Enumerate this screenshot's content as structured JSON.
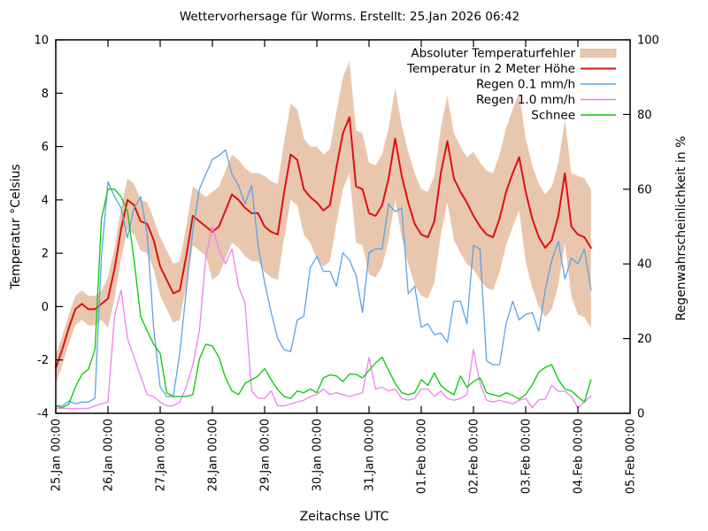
{
  "title": "Wettervorhersage für Worms. Erstellt: 25.Jan 2026 06:42",
  "colors": {
    "background": "#ffffff",
    "axis": "#000000",
    "band": "#e9c6ae",
    "temperature": "#dd1111",
    "rain01": "#5aa3e6",
    "rain10": "#ee82ee",
    "snow": "#00cc00"
  },
  "chart_data": {
    "type": "line",
    "title": "Wettervorhersage für Worms. Erstellt: 25.Jan 2026 06:42",
    "xlabel": "Zeitachse UTC",
    "ylabel_left": "Temperatur °Celsius",
    "ylabel_right": "Regenwahrscheinlichkeit in %",
    "grid": false,
    "legend_position": "top-right-inside",
    "x_axis": {
      "unit": "hours since 25.Jan 00:00 UTC",
      "range": [
        0,
        264
      ],
      "tick_step_hours": 24,
      "tick_labels": [
        "25.Jan 00:00",
        "26.Jan 00:00",
        "27.Jan 00:00",
        "28.Jan 00:00",
        "29.Jan 00:00",
        "30.Jan 00:00",
        "31.Jan 00:00",
        "01.Feb 00:00",
        "02.Feb 00:00",
        "03.Feb 00:00",
        "04.Feb 00:00",
        "05.Feb 00:00"
      ]
    },
    "y_left": {
      "range": [
        -4,
        10
      ],
      "tick_step": 2,
      "tick_labels": [
        "-4",
        "-2",
        "0",
        "2",
        "4",
        "6",
        "8",
        "10"
      ]
    },
    "y_right": {
      "range": [
        0,
        100
      ],
      "tick_step": 20,
      "tick_labels": [
        "0",
        "20",
        "40",
        "60",
        "80",
        "100"
      ]
    },
    "sample_step_hours": 3,
    "series": [
      {
        "name": "Absoluter Temperaturfehler",
        "kind": "band",
        "axis": "left",
        "color": "#e9c6ae",
        "upper": [
          -1.8,
          -1.1,
          -0.3,
          0.4,
          0.6,
          0.4,
          0.4,
          0.6,
          1.1,
          2.2,
          3.7,
          4.8,
          4.6,
          4.0,
          3.9,
          3.3,
          2.6,
          2.1,
          1.6,
          1.7,
          3.0,
          4.5,
          4.3,
          4.1,
          4.3,
          4.5,
          5.1,
          5.7,
          5.5,
          5.2,
          5.0,
          5.0,
          4.9,
          4.7,
          4.6,
          6.2,
          7.6,
          7.4,
          6.3,
          6.0,
          6.0,
          5.7,
          5.9,
          7.3,
          8.6,
          9.2,
          6.6,
          6.5,
          5.4,
          5.3,
          5.7,
          6.7,
          8.2,
          6.8,
          5.8,
          5.0,
          4.4,
          4.3,
          4.9,
          6.7,
          7.9,
          6.5,
          6.0,
          5.6,
          5.8,
          5.4,
          5.1,
          5.0,
          5.7,
          6.7,
          7.4,
          8.0,
          6.3,
          5.3,
          4.6,
          4.2,
          4.5,
          5.4,
          7.0,
          5.0,
          4.9,
          4.8,
          4.4
        ],
        "lower": [
          -2.9,
          -2.2,
          -1.4,
          -0.7,
          -0.5,
          -0.7,
          -0.7,
          -0.5,
          -0.8,
          0.3,
          1.8,
          2.9,
          2.7,
          2.1,
          2.0,
          1.4,
          0.4,
          -0.1,
          -0.6,
          -0.5,
          0.8,
          2.3,
          2.1,
          1.9,
          1.0,
          1.2,
          1.8,
          2.4,
          2.2,
          1.9,
          1.7,
          1.7,
          1.3,
          1.1,
          1.0,
          2.6,
          4.0,
          3.8,
          2.7,
          2.4,
          1.8,
          1.5,
          1.7,
          3.1,
          4.4,
          5.0,
          2.4,
          2.3,
          1.2,
          1.1,
          1.5,
          2.5,
          4.0,
          2.6,
          1.6,
          0.8,
          0.4,
          0.3,
          0.9,
          2.7,
          3.9,
          2.5,
          2.0,
          1.6,
          1.4,
          1.0,
          0.7,
          0.6,
          1.3,
          2.3,
          3.0,
          3.6,
          1.7,
          0.7,
          0.0,
          -0.4,
          -0.1,
          0.8,
          2.4,
          0.4,
          -0.3,
          -0.4,
          -0.8
        ]
      },
      {
        "name": "Temperatur in 2 Meter Höhe",
        "kind": "line",
        "axis": "left",
        "color": "#dd1111",
        "values": [
          -2.3,
          -1.6,
          -0.8,
          -0.1,
          0.1,
          -0.1,
          -0.1,
          0.1,
          0.3,
          1.4,
          2.9,
          4.0,
          3.8,
          3.2,
          3.1,
          2.5,
          1.5,
          1.0,
          0.5,
          0.6,
          1.9,
          3.4,
          3.2,
          3.0,
          2.8,
          3.0,
          3.6,
          4.2,
          4.0,
          3.7,
          3.5,
          3.5,
          3.0,
          2.8,
          2.7,
          4.3,
          5.7,
          5.5,
          4.4,
          4.1,
          3.9,
          3.6,
          3.8,
          5.2,
          6.5,
          7.1,
          4.5,
          4.4,
          3.5,
          3.4,
          3.8,
          4.8,
          6.3,
          4.9,
          3.9,
          3.1,
          2.7,
          2.6,
          3.2,
          5.0,
          6.2,
          4.8,
          4.3,
          3.9,
          3.4,
          3.0,
          2.7,
          2.6,
          3.3,
          4.3,
          5.0,
          5.6,
          4.3,
          3.3,
          2.6,
          2.2,
          2.5,
          3.4,
          5.0,
          3.0,
          2.7,
          2.6,
          2.2
        ]
      },
      {
        "name": "Regen 0.1 mm/h",
        "kind": "line",
        "axis": "right",
        "color": "#5aa3e6",
        "values": [
          2,
          2,
          3.3,
          2.5,
          3,
          3,
          4,
          42,
          62,
          58,
          55,
          47,
          55,
          58,
          48,
          23,
          7,
          4.5,
          4.5,
          16,
          33,
          49,
          60,
          64,
          68,
          69,
          70.5,
          64,
          61,
          56,
          61,
          45,
          35,
          27,
          20,
          17,
          16.5,
          25,
          26,
          39,
          42,
          38,
          38,
          34,
          43,
          41,
          37,
          27,
          43,
          44,
          44,
          56,
          54,
          55,
          32,
          34,
          23,
          24,
          21,
          21.5,
          19,
          30,
          30,
          24,
          45,
          44,
          14,
          13,
          13,
          24,
          30,
          25,
          26.5,
          27,
          22,
          33,
          41,
          46,
          36,
          41.5,
          40,
          44,
          33
        ]
      },
      {
        "name": "Regen 1.0 mm/h",
        "kind": "line",
        "axis": "right",
        "color": "#ee82ee",
        "values": [
          1.3,
          1.3,
          1.3,
          1.3,
          1.3,
          1.3,
          2,
          2.5,
          3,
          26,
          33,
          20,
          15,
          10,
          5,
          4.5,
          3,
          2,
          2,
          3,
          7,
          13,
          22,
          42,
          50,
          44,
          40,
          44,
          34,
          29.5,
          6,
          4,
          4,
          6,
          2,
          2,
          2.5,
          3,
          3.5,
          4.5,
          5,
          6.5,
          5,
          5.5,
          5,
          4.5,
          5,
          5.5,
          15,
          6.5,
          7,
          6,
          6.5,
          4,
          3.5,
          4,
          6.5,
          6.5,
          4.5,
          6,
          4,
          3.5,
          4,
          5,
          17,
          8,
          3.5,
          3,
          3.5,
          3,
          2.5,
          3.5,
          4,
          1.5,
          3.6,
          3.8,
          7.5,
          5.9,
          5.9,
          4.5,
          1.5,
          3,
          4.7
        ]
      },
      {
        "name": "Schnee",
        "kind": "line",
        "axis": "right",
        "color": "#00cc00",
        "values": [
          2,
          1.5,
          2.5,
          7,
          10.4,
          11.8,
          17,
          52,
          60,
          60,
          58,
          54,
          41,
          26,
          22,
          18.5,
          16,
          5.5,
          4.5,
          4.5,
          4.5,
          5,
          14.5,
          18.5,
          18,
          15,
          9.5,
          6,
          5,
          8,
          9,
          10,
          12,
          9,
          6.3,
          4.5,
          4,
          6,
          5.5,
          6.5,
          5.5,
          9.5,
          10.3,
          10,
          8.5,
          10.5,
          10.4,
          9.5,
          11.5,
          13.5,
          15,
          11.5,
          8,
          5.5,
          5,
          5.5,
          9,
          7.5,
          10.8,
          7.5,
          6,
          5,
          10,
          7,
          8.5,
          9.5,
          5.5,
          5,
          4.5,
          5.5,
          4.8,
          3.8,
          5,
          7.6,
          11,
          12.3,
          13,
          9,
          6.5,
          6,
          4.4,
          3,
          9
        ]
      }
    ]
  }
}
